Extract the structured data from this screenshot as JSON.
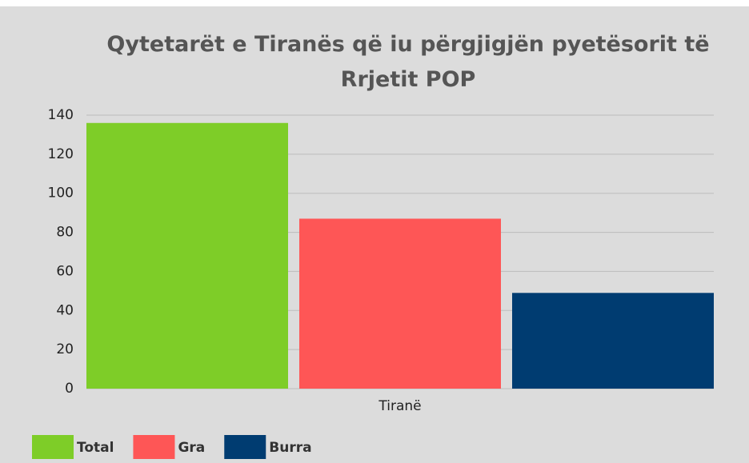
{
  "chart_data": {
    "type": "bar",
    "title": "Qytetarët e Tiranës që iu përgjigjën pyetësorit të Rrjetit POP",
    "categories": [
      "Tiranë"
    ],
    "series": [
      {
        "name": "Total",
        "color": "#7ecd28",
        "values": [
          136
        ]
      },
      {
        "name": "Gra",
        "color": "#fe5656",
        "values": [
          87
        ]
      },
      {
        "name": "Burra",
        "color": "#003c71",
        "values": [
          49
        ]
      }
    ],
    "ylim": [
      0,
      140
    ],
    "yticks": [
      0,
      20,
      40,
      60,
      80,
      100,
      120,
      140
    ],
    "grid": true,
    "legend": "bottom-left"
  }
}
